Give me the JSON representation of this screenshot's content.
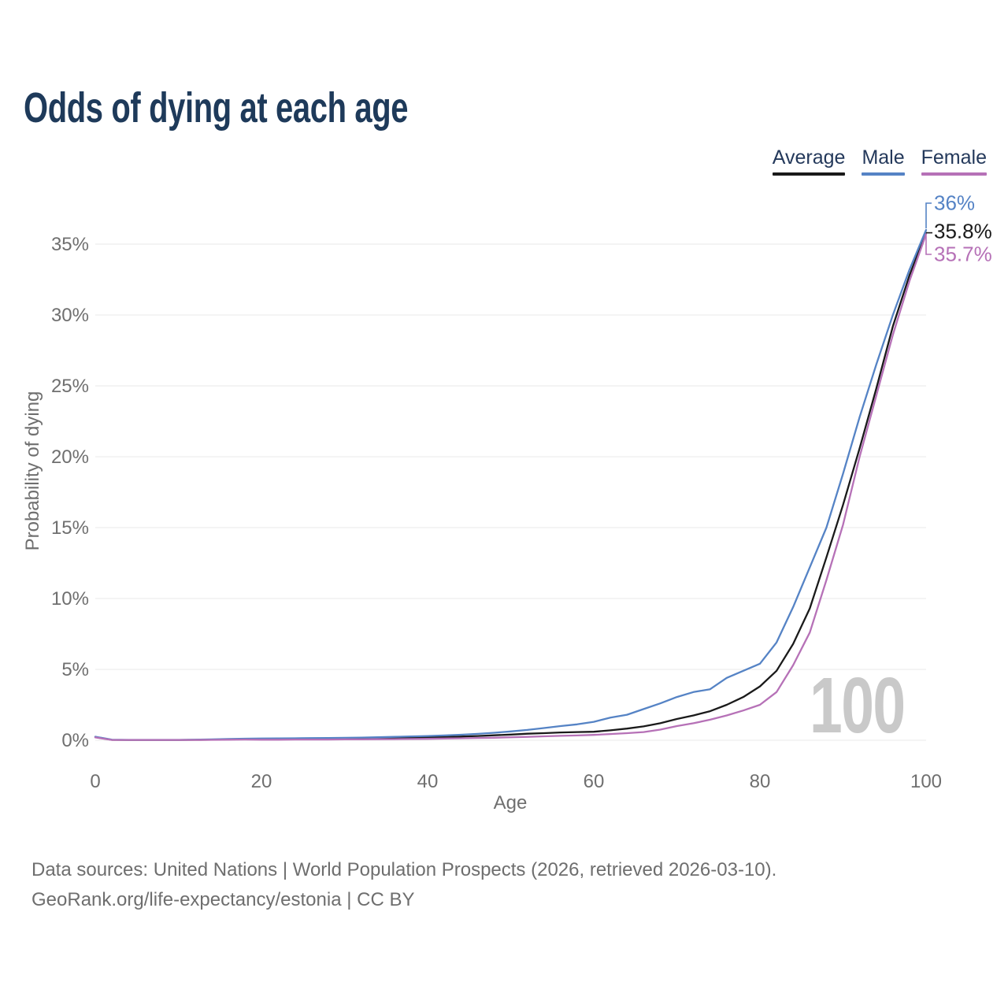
{
  "title": "Odds of dying at each age",
  "watermark": "100",
  "colors": {
    "title_navy": "#1e3a5a",
    "legend_text": "#24395b",
    "axis_text": "#6f6f6f",
    "gridline": "#e9e9e9",
    "watermark_gray": "#c9c9c9",
    "footer_gray": "#6e6e6e",
    "average": "#1a1a1a",
    "male": "#5583c5",
    "female": "#b671b7"
  },
  "legend": [
    {
      "label": "Average",
      "color": "#1a1a1a"
    },
    {
      "label": "Male",
      "color": "#5583c5"
    },
    {
      "label": "Female",
      "color": "#b671b7"
    }
  ],
  "footer": {
    "line1": "Data sources: United Nations | World Population Prospects (2026, retrieved 2026-03-10).",
    "line2": "GeoRank.org/life-expectancy/estonia | CC BY"
  },
  "chart_data": {
    "type": "line",
    "title": "Odds of dying at each age",
    "xlabel": "Age",
    "ylabel": "Probability of dying",
    "xlim": [
      0,
      100
    ],
    "ylim_percent": [
      0,
      37.5
    ],
    "grid": "horizontal",
    "legend_position": "top-right",
    "highlighted_age": "100",
    "x_ticks": [
      0,
      20,
      40,
      60,
      80,
      100
    ],
    "y_ticks": [
      "0%",
      "5%",
      "10%",
      "15%",
      "20%",
      "25%",
      "30%",
      "35%"
    ],
    "y_tick_step_percent": 5,
    "x": [
      0,
      2,
      4,
      6,
      8,
      10,
      12,
      14,
      16,
      18,
      20,
      22,
      24,
      26,
      28,
      30,
      32,
      34,
      36,
      38,
      40,
      42,
      44,
      46,
      48,
      50,
      52,
      54,
      56,
      58,
      60,
      62,
      64,
      66,
      68,
      70,
      72,
      74,
      76,
      78,
      80,
      82,
      84,
      86,
      88,
      90,
      92,
      94,
      96,
      98,
      100
    ],
    "series": [
      {
        "name": "Average",
        "color": "#1a1a1a",
        "end_label": "35.8%",
        "values": [
          0.22,
          0.03,
          0.02,
          0.02,
          0.02,
          0.02,
          0.03,
          0.04,
          0.06,
          0.08,
          0.08,
          0.09,
          0.1,
          0.1,
          0.11,
          0.11,
          0.12,
          0.14,
          0.16,
          0.18,
          0.2,
          0.23,
          0.26,
          0.3,
          0.35,
          0.4,
          0.46,
          0.5,
          0.55,
          0.58,
          0.6,
          0.7,
          0.82,
          0.98,
          1.2,
          1.5,
          1.75,
          2.05,
          2.5,
          3.05,
          3.8,
          4.9,
          6.8,
          9.3,
          12.9,
          16.6,
          20.6,
          24.8,
          29.2,
          32.8,
          35.8
        ]
      },
      {
        "name": "Male",
        "color": "#5583c5",
        "end_label": "36%",
        "values": [
          0.25,
          0.04,
          0.03,
          0.03,
          0.03,
          0.03,
          0.04,
          0.06,
          0.09,
          0.11,
          0.12,
          0.13,
          0.14,
          0.15,
          0.16,
          0.17,
          0.19,
          0.21,
          0.24,
          0.27,
          0.3,
          0.34,
          0.39,
          0.45,
          0.53,
          0.62,
          0.73,
          0.86,
          1.0,
          1.12,
          1.3,
          1.6,
          1.8,
          2.2,
          2.6,
          3.05,
          3.4,
          3.6,
          4.4,
          4.9,
          5.4,
          6.9,
          9.4,
          12.2,
          15.0,
          18.8,
          22.8,
          26.5,
          30.0,
          33.2,
          36.0
        ]
      },
      {
        "name": "Female",
        "color": "#b671b7",
        "end_label": "35.7%",
        "values": [
          0.2,
          0.02,
          0.02,
          0.02,
          0.02,
          0.02,
          0.02,
          0.03,
          0.04,
          0.05,
          0.04,
          0.04,
          0.05,
          0.05,
          0.05,
          0.06,
          0.06,
          0.07,
          0.08,
          0.09,
          0.1,
          0.12,
          0.14,
          0.16,
          0.18,
          0.21,
          0.24,
          0.28,
          0.31,
          0.34,
          0.38,
          0.44,
          0.5,
          0.58,
          0.75,
          1.0,
          1.2,
          1.45,
          1.75,
          2.1,
          2.5,
          3.4,
          5.3,
          7.6,
          11.3,
          15.2,
          20.0,
          24.3,
          28.6,
          32.4,
          35.7
        ]
      }
    ]
  }
}
